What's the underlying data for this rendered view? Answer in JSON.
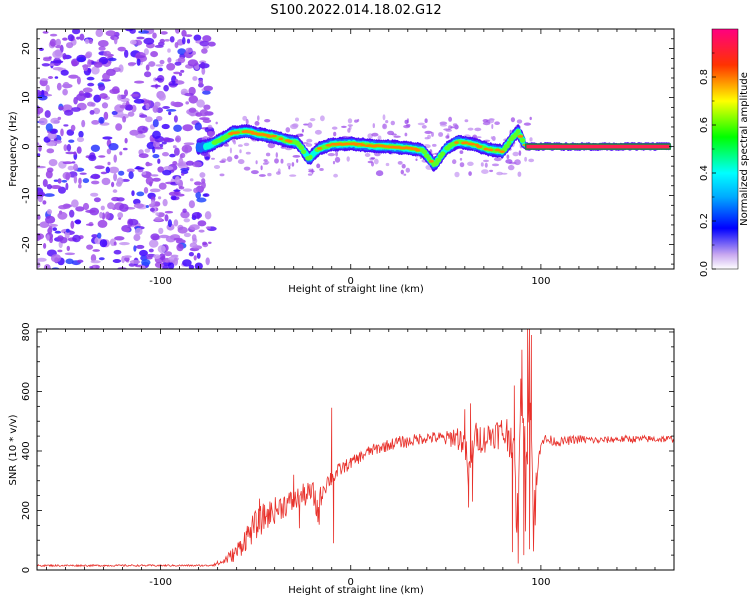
{
  "title": "S100.2022.014.18.02.G12",
  "chart_data": [
    {
      "type": "heatmap",
      "xlabel": "Height of straight line (km)",
      "ylabel": "Frequency (Hz)",
      "xlim": [
        -165,
        170
      ],
      "ylim": [
        -25,
        24
      ],
      "x_ticks": [
        -100,
        0,
        100
      ],
      "y_ticks": [
        -20,
        -10,
        0,
        10,
        20
      ],
      "colorbar": {
        "label": "Normalized spectral amplitude",
        "range": [
          0,
          1
        ],
        "ticks": [
          0.0,
          0.2,
          0.4,
          0.6,
          0.8
        ],
        "colormap": [
          "#d8c8f0",
          "#8a2be2",
          "#0000ff",
          "#00ffff",
          "#00ff00",
          "#ffff00",
          "#ff0000",
          "#ff0080"
        ]
      },
      "noise_region": {
        "x_range": [
          -165,
          -73
        ],
        "freq_range": [
          -25,
          24
        ],
        "amplitude": 0.12
      },
      "ridge": [
        {
          "x": -80,
          "freq": -0.2,
          "amp": 0.3
        },
        {
          "x": -74,
          "freq": 0.2,
          "amp": 0.55
        },
        {
          "x": -68,
          "freq": 1.5,
          "amp": 0.6
        },
        {
          "x": -62,
          "freq": 2.8,
          "amp": 0.7
        },
        {
          "x": -55,
          "freq": 3.1,
          "amp": 0.75
        },
        {
          "x": -48,
          "freq": 2.5,
          "amp": 0.8
        },
        {
          "x": -40,
          "freq": 2.0,
          "amp": 0.75
        },
        {
          "x": -34,
          "freq": 1.2,
          "amp": 0.7
        },
        {
          "x": -28,
          "freq": 0.8,
          "amp": 0.65
        },
        {
          "x": -22,
          "freq": -2.5,
          "amp": 0.55
        },
        {
          "x": -17,
          "freq": -0.5,
          "amp": 0.65
        },
        {
          "x": -10,
          "freq": 0.4,
          "amp": 0.8
        },
        {
          "x": 0,
          "freq": 0.6,
          "amp": 0.85
        },
        {
          "x": 10,
          "freq": 0.2,
          "amp": 0.8
        },
        {
          "x": 20,
          "freq": 0.0,
          "amp": 0.85
        },
        {
          "x": 30,
          "freq": -0.3,
          "amp": 0.8
        },
        {
          "x": 38,
          "freq": -0.8,
          "amp": 0.7
        },
        {
          "x": 44,
          "freq": -3.8,
          "amp": 0.6
        },
        {
          "x": 50,
          "freq": -0.5,
          "amp": 0.6
        },
        {
          "x": 56,
          "freq": 1.0,
          "amp": 0.7
        },
        {
          "x": 64,
          "freq": 0.5,
          "amp": 0.75
        },
        {
          "x": 72,
          "freq": -0.5,
          "amp": 0.7
        },
        {
          "x": 80,
          "freq": -1.0,
          "amp": 0.65
        },
        {
          "x": 85,
          "freq": 1.8,
          "amp": 0.6
        },
        {
          "x": 88,
          "freq": 3.0,
          "amp": 0.55
        },
        {
          "x": 92,
          "freq": 0.0,
          "amp": 0.85
        },
        {
          "x": 110,
          "freq": 0.0,
          "amp": 0.95
        },
        {
          "x": 130,
          "freq": 0.0,
          "amp": 0.95
        },
        {
          "x": 150,
          "freq": 0.0,
          "amp": 0.95
        },
        {
          "x": 168,
          "freq": 0.0,
          "amp": 0.95
        }
      ]
    },
    {
      "type": "line",
      "xlabel": "Height of straight line (km)",
      "ylabel": "SNR (10 * v/v)",
      "xlim": [
        -165,
        170
      ],
      "ylim": [
        0,
        810
      ],
      "x_ticks": [
        -100,
        0,
        100
      ],
      "y_ticks": [
        0,
        200,
        400,
        600,
        800
      ],
      "series": [
        {
          "color": "#e8312b",
          "x": [
            -165,
            -140,
            -115,
            -90,
            -75,
            -68,
            -60,
            -55,
            -50,
            -45,
            -40,
            -35,
            -30,
            -25,
            -20,
            -17,
            -15,
            -12,
            -10,
            -5,
            0,
            5,
            10,
            15,
            20,
            25,
            30,
            35,
            40,
            45,
            50,
            55,
            60,
            62,
            65,
            70,
            75,
            80,
            85,
            88,
            90,
            92,
            94,
            96,
            100,
            110,
            120,
            130,
            140,
            150,
            160,
            170
          ],
          "values": [
            15,
            15,
            15,
            15,
            15,
            25,
            60,
            110,
            150,
            180,
            200,
            220,
            230,
            250,
            260,
            190,
            270,
            300,
            310,
            340,
            360,
            380,
            400,
            410,
            420,
            430,
            430,
            440,
            445,
            445,
            440,
            450,
            430,
            300,
            450,
            440,
            460,
            460,
            450,
            120,
            700,
            250,
            780,
            160,
            440,
            430,
            440,
            435,
            440,
            440,
            440,
            440
          ],
          "noise": [
            3,
            3,
            3,
            3,
            3,
            10,
            30,
            45,
            50,
            50,
            45,
            45,
            40,
            40,
            40,
            60,
            40,
            30,
            30,
            25,
            20,
            20,
            20,
            20,
            20,
            20,
            20,
            20,
            20,
            20,
            25,
            40,
            50,
            70,
            50,
            50,
            50,
            60,
            80,
            120,
            140,
            150,
            150,
            120,
            20,
            15,
            15,
            12,
            12,
            12,
            12,
            12
          ],
          "spikes": [
            {
              "x": -55,
              "value": 130
            },
            {
              "x": -48,
              "value": 240
            },
            {
              "x": -30,
              "value": 320
            },
            {
              "x": -27,
              "value": 140
            },
            {
              "x": -10,
              "value": 545
            },
            {
              "x": -9,
              "value": 90
            },
            {
              "x": 60,
              "value": 540
            },
            {
              "x": 62,
              "value": 210
            },
            {
              "x": 63,
              "value": 560
            },
            {
              "x": 64,
              "value": 230
            },
            {
              "x": 85,
              "value": 60
            },
            {
              "x": 86,
              "value": 620
            },
            {
              "x": 88,
              "value": 100
            },
            {
              "x": 90,
              "value": 740
            },
            {
              "x": 91,
              "value": 50
            },
            {
              "x": 93,
              "value": 810
            },
            {
              "x": 94,
              "value": 70
            },
            {
              "x": 95,
              "value": 790
            },
            {
              "x": 97,
              "value": 150
            }
          ]
        }
      ]
    }
  ]
}
